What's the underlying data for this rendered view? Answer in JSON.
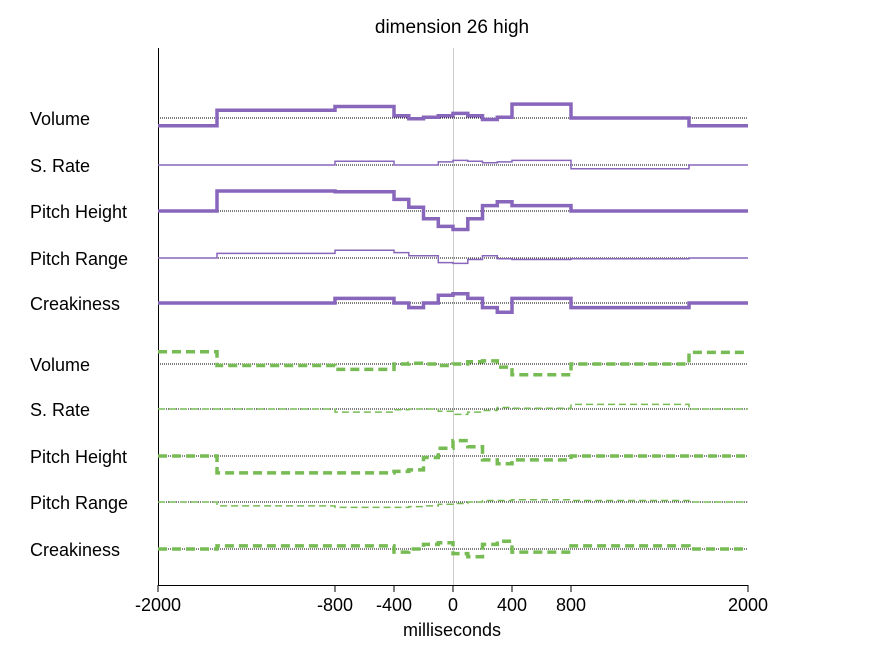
{
  "chart_data": {
    "type": "line",
    "title": "dimension 26 high",
    "xlabel": "milliseconds",
    "xlim": [
      -2000,
      2000
    ],
    "x_ticks": [
      -2000,
      -800,
      -400,
      0,
      400,
      800,
      2000
    ],
    "grid": false,
    "vertical_reference": 0,
    "x_breaks": [
      -2000,
      -1600,
      -800,
      -400,
      -300,
      -200,
      -100,
      0,
      100,
      200,
      300,
      400,
      800,
      1600,
      2000
    ],
    "groups": [
      {
        "color": "#8866bb",
        "line_style": "solid",
        "rows": [
          {
            "label": "Volume",
            "weight": "thick",
            "values": [
              -1.0,
              1.0,
              1.5,
              0.3,
              -0.1,
              0.1,
              0.3,
              0.6,
              0.3,
              -0.2,
              0.1,
              1.8,
              0.0,
              -1.0
            ]
          },
          {
            "label": "S. Rate",
            "weight": "thin",
            "values": [
              0.0,
              0.0,
              0.5,
              0.0,
              0.0,
              0.0,
              0.4,
              0.6,
              0.5,
              0.3,
              0.4,
              0.6,
              -0.5,
              0.0
            ]
          },
          {
            "label": "Pitch Height",
            "weight": "thick",
            "values": [
              0.0,
              2.6,
              2.5,
              1.5,
              0.5,
              -1.0,
              -2.0,
              -2.4,
              -1.0,
              0.7,
              1.2,
              0.7,
              0.0,
              0.0
            ]
          },
          {
            "label": "Pitch Range",
            "weight": "thin",
            "values": [
              0.0,
              0.6,
              1.0,
              0.7,
              0.3,
              0.3,
              -0.6,
              -0.7,
              -0.2,
              0.3,
              -0.1,
              -0.2,
              -0.1,
              0.0
            ]
          },
          {
            "label": "Creakiness",
            "weight": "thick",
            "values": [
              0.0,
              0.0,
              0.6,
              0.0,
              -0.6,
              0.0,
              1.0,
              1.2,
              0.6,
              -0.6,
              -1.2,
              0.6,
              -0.6,
              0.0
            ]
          }
        ]
      },
      {
        "color": "#77bb55",
        "line_style": "dashed",
        "rows": [
          {
            "label": "Volume",
            "weight": "thick",
            "values": [
              1.6,
              -0.2,
              -0.7,
              0.0,
              0.1,
              0.0,
              -0.2,
              0.0,
              0.3,
              0.4,
              -0.4,
              -1.4,
              0.0,
              1.5
            ]
          },
          {
            "label": "S. Rate",
            "weight": "thin",
            "values": [
              0.0,
              0.0,
              -0.4,
              -0.1,
              0.0,
              0.0,
              -0.3,
              -0.7,
              -0.4,
              -0.2,
              0.2,
              0.1,
              0.6,
              0.0
            ]
          },
          {
            "label": "Pitch Height",
            "weight": "thick",
            "values": [
              0.0,
              -2.2,
              -2.2,
              -2.0,
              -1.8,
              -0.2,
              1.0,
              2.0,
              1.2,
              -0.5,
              -1.0,
              -0.5,
              0.0,
              0.0
            ]
          },
          {
            "label": "Pitch Range",
            "weight": "thin",
            "values": [
              0.0,
              -0.5,
              -0.7,
              -0.7,
              -0.6,
              -0.5,
              -0.3,
              -0.2,
              0.0,
              0.2,
              0.2,
              0.3,
              0.2,
              0.0
            ]
          },
          {
            "label": "Creakiness",
            "weight": "thick",
            "values": [
              0.0,
              0.4,
              0.4,
              -0.4,
              0.0,
              0.6,
              0.8,
              -0.6,
              -1.0,
              0.6,
              1.0,
              -0.4,
              0.4,
              0.0
            ]
          }
        ]
      }
    ]
  }
}
